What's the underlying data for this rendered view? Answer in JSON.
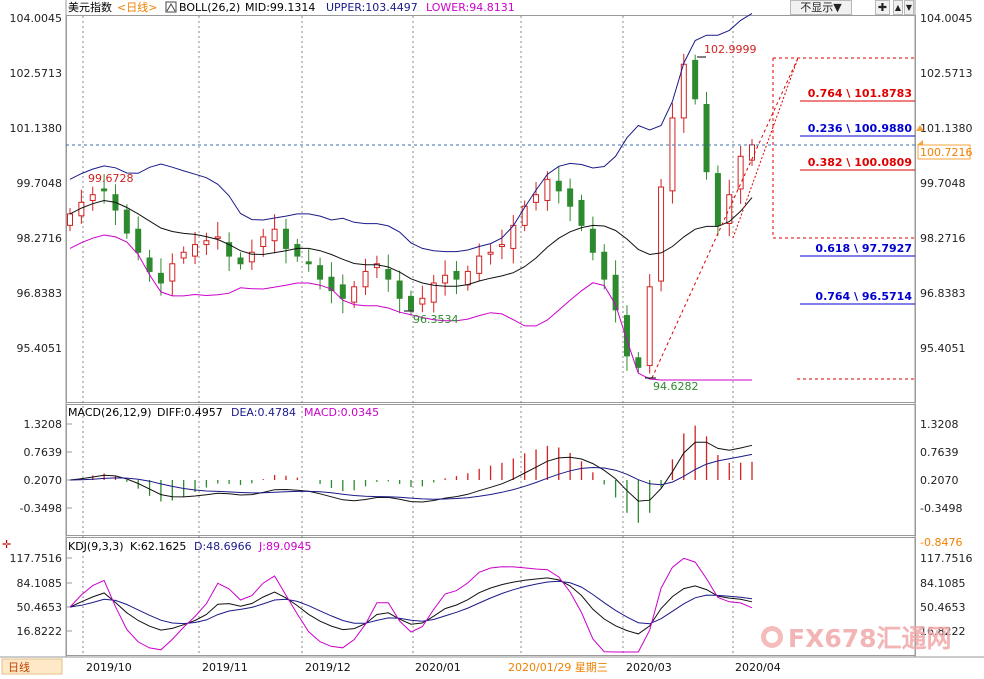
{
  "main_header": {
    "name": "美元指数",
    "period": "<日线>",
    "boll_label": "BOLL(26,2)",
    "mid": "MID:99.1314",
    "upper": "UPPER:103.4497",
    "lower": "LOWER:94.8131"
  },
  "controls": {
    "show_label": "不显示▼",
    "zoom_label": "✚",
    "up_label": "▲",
    "down_label": "▼"
  },
  "price_ticks": [
    "104.0045",
    "102.5713",
    "101.1380",
    "99.7048",
    "98.2716",
    "96.8383",
    "95.4051"
  ],
  "price_ticks_right": [
    "104.0045",
    "102.5713",
    "101.1380",
    "99.7048",
    "98.2716",
    "96.8383",
    "95.4051"
  ],
  "current_price": "100.7216",
  "annotations": {
    "high_mark": "102.9999",
    "left_high": "99.6728",
    "low1": "96.3534",
    "low2": "94.6282"
  },
  "fib_levels": [
    {
      "label": "0.764 \\ 101.8783",
      "color": "#e00000",
      "value": 101.8783
    },
    {
      "label": "0.236 \\ 100.9880",
      "color": "#0000d0",
      "value": 100.988
    },
    {
      "label": "0.382 \\ 100.0809",
      "color": "#e00000",
      "value": 100.0809
    },
    {
      "label": "0.618 \\ 97.7927",
      "color": "#0000d0",
      "value": 97.7927
    },
    {
      "label": "0.764 \\ 96.5714",
      "color": "#0000d0",
      "value": 96.5714
    }
  ],
  "macd_header": {
    "name": "MACD(26,12,9)",
    "diff": "DIFF:0.4957",
    "dea": "DEA:0.4784",
    "macd": "MACD:0.0345"
  },
  "macd_ticks": [
    "1.3208",
    "0.7639",
    "0.2070",
    "-0.3498"
  ],
  "macd_ticks_right": [
    "1.3208",
    "0.7639",
    "0.2070",
    "-0.3498"
  ],
  "macd_extra": "-0.8476",
  "kdj_header": {
    "name": "KDJ(9,3,3)",
    "k": "K:62.1625",
    "d": "D:48.6966",
    "j": "J:89.0945"
  },
  "kdj_ticks": [
    "117.7516",
    "84.1085",
    "50.4653",
    "16.8222"
  ],
  "kdj_ticks_right": [
    "117.7516",
    "84.1085",
    "50.4653",
    "16.8222"
  ],
  "footer": {
    "period_button": "日线",
    "dates": [
      "2019/10",
      "2019/11",
      "2019/12",
      "2020/01",
      "2020/03",
      "2020/04"
    ],
    "cursor_date": "2020/01/29 星期三"
  },
  "watermark": "FX678汇通网",
  "colors": {
    "up": "#d32020",
    "down": "#2e8a2e",
    "upper_band": "#1a1a8a",
    "lower_band": "#cc00cc",
    "mid_band": "#111111",
    "price_label_bg": "#f7a33c"
  },
  "chart_data": {
    "type": "candlestick",
    "panels": [
      "price+BOLL",
      "MACD",
      "KDJ"
    ],
    "y_range": [
      94.6,
      104.0045
    ],
    "x_labels": [
      "2019/10",
      "2019/11",
      "2019/12",
      "2020/01",
      "2020/03",
      "2020/04"
    ],
    "closes_approx": [
      98.9,
      99.2,
      99.4,
      99.5,
      99.0,
      98.4,
      97.9,
      97.4,
      97.1,
      97.6,
      97.9,
      98.1,
      98.2,
      98.3,
      97.8,
      97.6,
      97.9,
      98.3,
      98.5,
      98.0,
      97.8,
      97.6,
      97.2,
      96.9,
      96.7,
      97.0,
      97.4,
      97.6,
      97.2,
      96.7,
      96.4,
      96.7,
      97.1,
      97.3,
      97.2,
      97.4,
      97.8,
      97.9,
      98.1,
      98.6,
      99.1,
      99.4,
      99.8,
      99.5,
      99.1,
      98.6,
      97.9,
      97.2,
      96.4,
      95.2,
      94.9,
      97.0,
      99.6,
      101.4,
      102.8,
      101.9,
      100.0,
      98.6,
      99.4,
      100.4,
      100.7
    ],
    "boll": {
      "mid": "99.1314",
      "upper": "103.4497",
      "lower": "94.8131"
    },
    "macd": {
      "diff": "0.4957",
      "dea": "0.4784",
      "macd": "0.0345"
    },
    "kdj": {
      "k": "62.1625",
      "d": "48.6966",
      "j": "89.0945"
    }
  }
}
